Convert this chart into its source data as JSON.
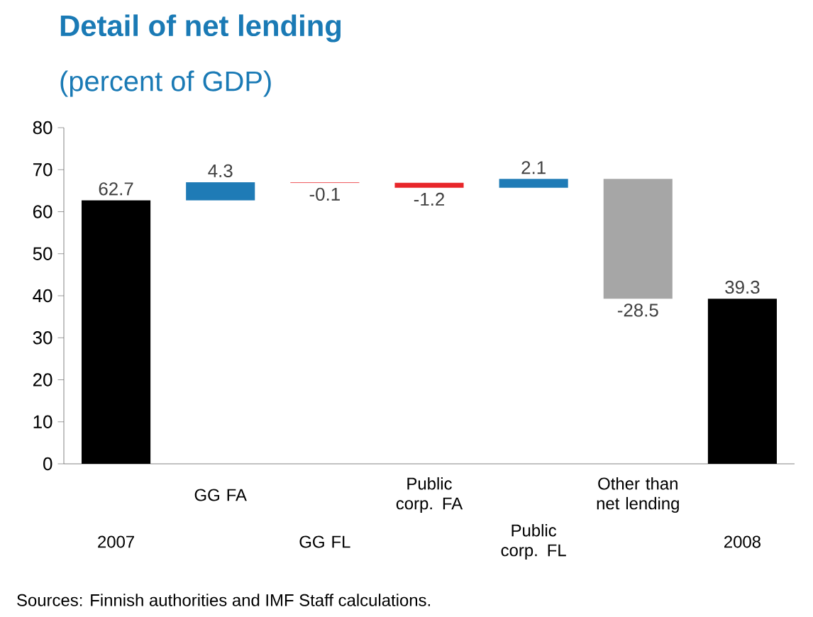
{
  "chart_data": {
    "type": "bar",
    "title": "Detail of net lending",
    "subtitle": "(percent of GDP)",
    "categories": [
      "2007",
      "GG FA",
      "GG FL",
      "Public corp. FA",
      "Public corp. FL",
      "Other than net lending",
      "2008"
    ],
    "values": [
      62.7,
      4.3,
      -0.1,
      -1.2,
      2.1,
      -28.5,
      39.3
    ],
    "base": [
      0,
      62.7,
      67.0,
      66.9,
      65.7,
      67.8,
      0
    ],
    "colors": [
      "#000000",
      "#1f7bb6",
      "#e8262a",
      "#e8262a",
      "#1f7bb6",
      "#a6a6a6",
      "#000000"
    ],
    "ylim": [
      0,
      80
    ],
    "yticks": [
      0,
      10,
      20,
      30,
      40,
      50,
      60,
      70,
      80
    ],
    "data_labels": true,
    "annotations": [
      "Sources: Finnish authorities and IMF Staff calculations."
    ]
  }
}
